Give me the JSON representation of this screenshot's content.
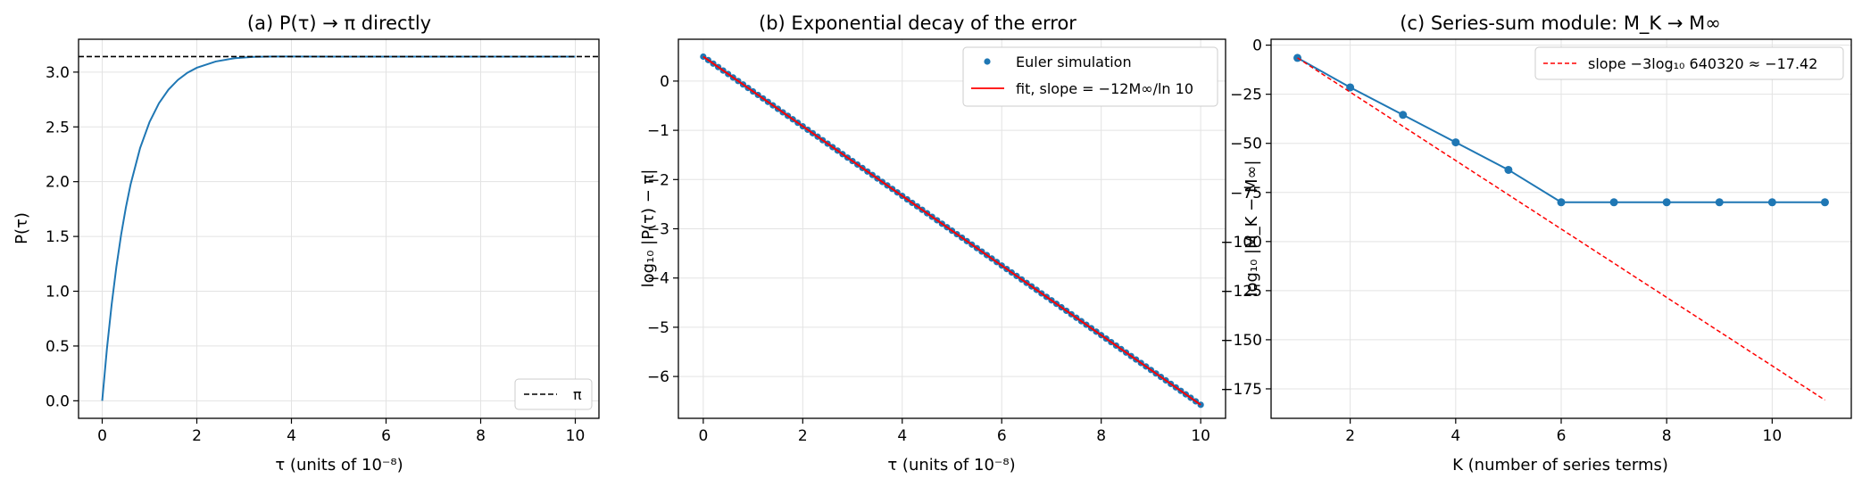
{
  "colors": {
    "series": "#1f77b4",
    "fit": "#ff0000",
    "reference": "#000000",
    "grid": "#e3e3e3"
  },
  "chart_data": [
    {
      "type": "line",
      "title": "(a) P(τ) → π directly",
      "xlabel": "τ  (units of 10⁻⁸)",
      "ylabel": "P(τ)",
      "xlim": [
        -0.5,
        10.5
      ],
      "ylim": [
        -0.16,
        3.3
      ],
      "xticks": [
        "0",
        "2",
        "4",
        "6",
        "8",
        "10"
      ],
      "yticks": [
        "0.0",
        "0.5",
        "1.0",
        "1.5",
        "2.0",
        "2.5",
        "3.0"
      ],
      "grid": true,
      "legend_position": "bottom-right",
      "series": [
        {
          "style": "solid",
          "x": [
            0,
            0.1,
            0.2,
            0.3,
            0.4,
            0.5,
            0.6,
            0.8,
            1.0,
            1.2,
            1.4,
            1.6,
            1.8,
            2.0,
            2.4,
            2.8,
            3.2,
            3.6,
            4.0,
            5.0,
            6.0,
            7.0,
            8.0,
            9.0,
            10.0
          ],
          "y": [
            0.0,
            0.476,
            0.88,
            1.224,
            1.516,
            1.764,
            1.975,
            2.305,
            2.544,
            2.716,
            2.84,
            2.929,
            2.994,
            3.04,
            3.097,
            3.127,
            3.139,
            3.142,
            3.142,
            3.1416,
            3.1416,
            3.1416,
            3.1416,
            3.1416,
            3.1416
          ]
        },
        {
          "name": "π",
          "style": "dashed",
          "color": "#000000",
          "hline": 3.14159
        }
      ]
    },
    {
      "type": "scatter",
      "title": "(b) Exponential decay of the error",
      "xlabel": "τ  (units of 10⁻⁸)",
      "ylabel": "log₁₀ |P(τ) − π|",
      "xlim": [
        -0.5,
        10.5
      ],
      "ylim": [
        -6.85,
        0.85
      ],
      "xticks": [
        "0",
        "2",
        "4",
        "6",
        "8",
        "10"
      ],
      "yticks": [
        "−6",
        "−5",
        "−4",
        "−3",
        "−2",
        "−1",
        "0"
      ],
      "grid": true,
      "legend_position": "top-right",
      "series": [
        {
          "name": "Euler simulation",
          "style": "points",
          "x_start": 0,
          "x_end": 10,
          "count": 101,
          "y_start": 0.497,
          "y_end": -6.575
        },
        {
          "name": "fit, slope = −12M∞/ln 10",
          "style": "solid",
          "color": "#ff0000",
          "x": [
            0,
            10
          ],
          "y": [
            0.497,
            -6.575
          ]
        }
      ]
    },
    {
      "type": "line",
      "title": "(c) Series-sum module: M_K → M∞",
      "xlabel": "K  (number of series terms)",
      "ylabel": "log₁₀ |M_K − M∞|",
      "xlim": [
        0.5,
        11.5
      ],
      "ylim": [
        -190,
        3
      ],
      "xticks": [
        "2",
        "4",
        "6",
        "8",
        "10"
      ],
      "yticks": [
        "0",
        "−25",
        "−50",
        "−75",
        "−100",
        "−125",
        "−150",
        "−175"
      ],
      "grid": true,
      "legend_position": "top-right",
      "series": [
        {
          "style": "solid-markers",
          "x": [
            1,
            2,
            3,
            4,
            5,
            6,
            7,
            8,
            9,
            10,
            11
          ],
          "y": [
            -6.5,
            -21.5,
            -35.5,
            -49.5,
            -63.5,
            -80,
            -80,
            -80,
            -80,
            -80,
            -80
          ]
        },
        {
          "name": "slope −3log₁₀ 640320 ≈ −17.42",
          "style": "dashed",
          "color": "#ff0000",
          "x": [
            1,
            11
          ],
          "y": [
            -6.5,
            -180.7
          ]
        }
      ]
    }
  ]
}
